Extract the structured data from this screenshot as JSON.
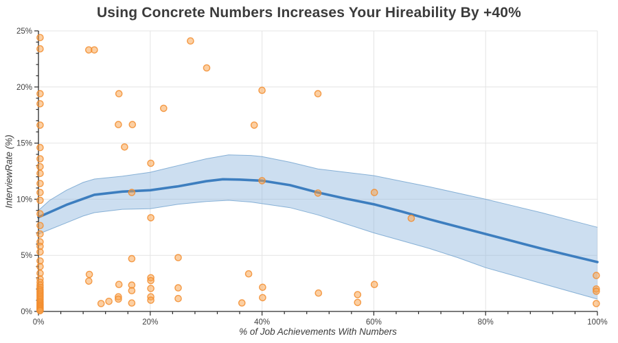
{
  "chart_data": {
    "type": "scatter",
    "title": "Using Concrete Numbers Increases Your Hireability By +40%",
    "xlabel": "% of Job Achievements With Numbers",
    "ylabel": "InterviewRate (%)",
    "xlim": [
      0,
      100
    ],
    "ylim": [
      0,
      25
    ],
    "grid": true,
    "legend": "none",
    "x_ticks": [
      {
        "v": 0,
        "label": "0%"
      },
      {
        "v": 20,
        "label": "20%"
      },
      {
        "v": 40,
        "label": "40%"
      },
      {
        "v": 60,
        "label": "60%"
      },
      {
        "v": 80,
        "label": "80%"
      },
      {
        "v": 100,
        "label": "100%"
      }
    ],
    "y_ticks": [
      {
        "v": 0,
        "label": "0%"
      },
      {
        "v": 5,
        "label": "5%"
      },
      {
        "v": 10,
        "label": "10%"
      },
      {
        "v": 15,
        "label": "15%"
      },
      {
        "v": 20,
        "label": "20%"
      },
      {
        "v": 25,
        "label": "25%"
      }
    ],
    "x_minor_step": 4,
    "y_minor_step": 1,
    "colors": {
      "point_fill": "rgba(250,160,70,0.5)",
      "point_stroke": "rgba(242,140,45,0.85)",
      "trend_line": "#3d7ebf",
      "band_fill": "rgba(142,182,221,0.45)",
      "band_edge": "rgba(110,160,205,0.8)",
      "grid": "#e4e4e4",
      "axis": "#2a2a2a",
      "text": "#3b3b3b"
    },
    "points": [
      [
        0.3,
        24.4
      ],
      [
        0.3,
        23.4
      ],
      [
        0.3,
        19.4
      ],
      [
        0.3,
        18.5
      ],
      [
        0.3,
        16.6
      ],
      [
        0.3,
        14.6
      ],
      [
        0.3,
        13.6
      ],
      [
        0.3,
        12.9
      ],
      [
        0.3,
        12.3
      ],
      [
        0.3,
        11.4
      ],
      [
        0.3,
        10.6
      ],
      [
        0.3,
        9.9
      ],
      [
        0.3,
        8.7
      ],
      [
        0.3,
        7.65
      ],
      [
        0.3,
        6.9
      ],
      [
        0.3,
        6.2
      ],
      [
        0.3,
        5.8
      ],
      [
        0.3,
        5.3
      ],
      [
        0.3,
        4.5
      ],
      [
        0.3,
        4.0
      ],
      [
        0.3,
        3.4
      ],
      [
        0.3,
        2.9
      ],
      [
        0.3,
        2.6
      ],
      [
        0.3,
        2.35
      ],
      [
        0.3,
        2.15
      ],
      [
        0.3,
        1.95
      ],
      [
        0.3,
        1.8
      ],
      [
        0.3,
        1.65
      ],
      [
        0.3,
        1.5
      ],
      [
        0.3,
        1.35
      ],
      [
        0.3,
        1.2
      ],
      [
        0.3,
        1.05
      ],
      [
        0.3,
        0.9
      ],
      [
        0.3,
        0.78
      ],
      [
        0.3,
        0.66
      ],
      [
        0.3,
        0.55
      ],
      [
        0.3,
        0.45
      ],
      [
        0.3,
        0.35
      ],
      [
        0.3,
        0.25
      ],
      [
        0.3,
        0.15
      ],
      [
        0.3,
        0.07
      ],
      [
        9.0,
        23.3
      ],
      [
        10.0,
        23.3
      ],
      [
        27.2,
        24.1
      ],
      [
        30.1,
        21.7
      ],
      [
        14.4,
        19.4
      ],
      [
        40,
        19.7
      ],
      [
        50,
        19.4
      ],
      [
        22.4,
        18.1
      ],
      [
        14.3,
        16.65
      ],
      [
        16.8,
        16.65
      ],
      [
        38.6,
        16.6
      ],
      [
        15.4,
        14.65
      ],
      [
        20.1,
        13.2
      ],
      [
        40,
        11.65
      ],
      [
        16.7,
        10.6
      ],
      [
        50,
        10.55
      ],
      [
        60.1,
        10.6
      ],
      [
        20.1,
        8.35
      ],
      [
        66.7,
        8.3
      ],
      [
        16.7,
        4.7
      ],
      [
        25,
        4.8
      ],
      [
        37.6,
        3.35
      ],
      [
        9.1,
        3.3
      ],
      [
        9.0,
        2.7
      ],
      [
        14.4,
        2.4
      ],
      [
        16.7,
        2.35
      ],
      [
        16.7,
        1.85
      ],
      [
        20.1,
        3.0
      ],
      [
        20.1,
        2.75
      ],
      [
        20.1,
        2.05
      ],
      [
        20.1,
        1.3
      ],
      [
        20.1,
        1.0
      ],
      [
        25,
        2.1
      ],
      [
        25,
        1.15
      ],
      [
        11.2,
        0.7
      ],
      [
        12.6,
        0.9
      ],
      [
        14.3,
        1.3
      ],
      [
        14.3,
        1.1
      ],
      [
        16.7,
        0.75
      ],
      [
        36.4,
        0.76
      ],
      [
        40.1,
        2.15
      ],
      [
        40.1,
        1.23
      ],
      [
        50.1,
        1.64
      ],
      [
        57.1,
        1.5
      ],
      [
        57.1,
        0.8
      ],
      [
        60.1,
        2.4
      ],
      [
        99.8,
        3.2
      ],
      [
        99.8,
        2.0
      ],
      [
        99.8,
        1.8
      ],
      [
        99.8,
        0.7
      ]
    ],
    "trend": [
      [
        0,
        8.4
      ],
      [
        5,
        9.5
      ],
      [
        10,
        10.4
      ],
      [
        15,
        10.68
      ],
      [
        20,
        10.8
      ],
      [
        25,
        11.15
      ],
      [
        30,
        11.6
      ],
      [
        33,
        11.78
      ],
      [
        36,
        11.75
      ],
      [
        40,
        11.65
      ],
      [
        45,
        11.25
      ],
      [
        50,
        10.6
      ],
      [
        55,
        10.05
      ],
      [
        60,
        9.55
      ],
      [
        65,
        8.9
      ],
      [
        70,
        8.2
      ],
      [
        75,
        7.55
      ],
      [
        80,
        6.9
      ],
      [
        85,
        6.25
      ],
      [
        90,
        5.6
      ],
      [
        95,
        5.0
      ],
      [
        100,
        4.4
      ]
    ],
    "band": {
      "upper": [
        [
          0,
          9.0
        ],
        [
          2,
          9.9
        ],
        [
          5,
          10.8
        ],
        [
          8,
          11.5
        ],
        [
          10,
          11.8
        ],
        [
          15,
          12.05
        ],
        [
          20,
          12.4
        ],
        [
          25,
          13.0
        ],
        [
          30,
          13.6
        ],
        [
          34,
          13.95
        ],
        [
          38,
          13.9
        ],
        [
          40,
          13.8
        ],
        [
          45,
          13.3
        ],
        [
          50,
          12.7
        ],
        [
          55,
          12.4
        ],
        [
          60,
          12.1
        ],
        [
          65,
          11.6
        ],
        [
          70,
          11.1
        ],
        [
          75,
          10.55
        ],
        [
          80,
          10.0
        ],
        [
          85,
          9.4
        ],
        [
          90,
          8.8
        ],
        [
          95,
          8.15
        ],
        [
          100,
          7.5
        ]
      ],
      "lower": [
        [
          0,
          6.9
        ],
        [
          2,
          7.3
        ],
        [
          5,
          7.9
        ],
        [
          8,
          8.5
        ],
        [
          10,
          8.8
        ],
        [
          15,
          9.1
        ],
        [
          20,
          9.15
        ],
        [
          25,
          9.55
        ],
        [
          30,
          9.8
        ],
        [
          34,
          9.9
        ],
        [
          38,
          9.75
        ],
        [
          40,
          9.6
        ],
        [
          45,
          9.25
        ],
        [
          50,
          8.6
        ],
        [
          55,
          7.8
        ],
        [
          60,
          7.0
        ],
        [
          65,
          6.3
        ],
        [
          70,
          5.6
        ],
        [
          75,
          4.8
        ],
        [
          80,
          3.9
        ],
        [
          85,
          3.2
        ],
        [
          90,
          2.5
        ],
        [
          95,
          1.8
        ],
        [
          100,
          1.1
        ]
      ]
    }
  }
}
